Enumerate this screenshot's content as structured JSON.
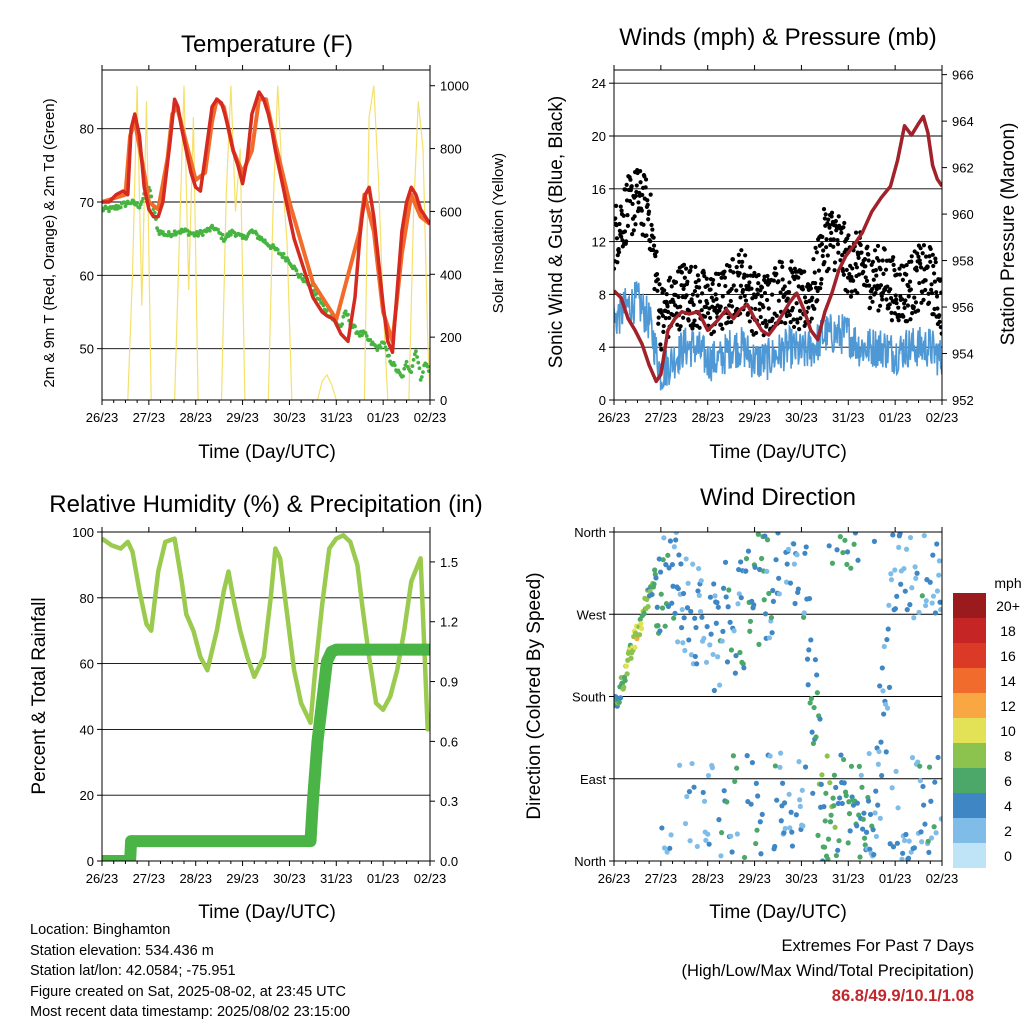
{
  "info": {
    "location": "Location: Binghamton",
    "elevation": "Station elevation: 534.436 m",
    "latlon": "Station lat/lon: 42.0584; -75.951",
    "created": "Figure created on Sat, 2025-08-02, at 23:45 UTC",
    "recent": "Most recent data timestamp: 2025/08/02 23:15:00"
  },
  "extremes": {
    "line1": "Extremes For Past 7 Days",
    "line2": "(High/Low/Max Wind/Total Precipitation)",
    "values": "86.8/49.9/10.1/1.08"
  },
  "chart_data": [
    {
      "type": "line",
      "title": "Temperature (F)",
      "xlabel": "Time (Day/UTC)",
      "ylabel": "2m & 9m T (Red, Orange) & 2m Td (Green)",
      "ylabel_right": "Solar Insolation (Yellow)",
      "x_ticks": [
        "26/23",
        "27/23",
        "28/23",
        "29/23",
        "30/23",
        "31/23",
        "01/23",
        "02/23"
      ],
      "xlim": [
        0,
        7
      ],
      "ylim": [
        43,
        88
      ],
      "y_ticks": [
        50,
        60,
        70,
        80
      ],
      "y2lim": [
        0,
        1050
      ],
      "y2_ticks": [
        0,
        200,
        400,
        600,
        800,
        1000
      ],
      "grid": "horizontal at left ticks",
      "colors": {
        "t2m": "#d42a20",
        "t9m": "#f26b2a",
        "td": "#47b441",
        "solar": "#f5e06b"
      },
      "series": [
        {
          "name": "2m T",
          "axis": "left",
          "color": "#d42a20",
          "x": [
            0,
            0.15,
            0.3,
            0.45,
            0.55,
            0.62,
            0.7,
            0.8,
            0.9,
            1.0,
            1.1,
            1.2,
            1.3,
            1.45,
            1.55,
            1.62,
            1.7,
            1.8,
            1.9,
            2.0,
            2.1,
            2.2,
            2.35,
            2.45,
            2.55,
            2.62,
            2.7,
            2.8,
            2.9,
            3.0,
            3.1,
            3.2,
            3.35,
            3.45,
            3.55,
            3.62,
            3.7,
            3.8,
            3.9,
            4.0,
            4.1,
            4.2,
            4.3,
            4.4,
            4.5,
            4.6,
            4.7,
            4.8,
            4.95,
            5.1,
            5.25,
            5.4,
            5.5,
            5.55,
            5.62,
            5.7,
            5.8,
            5.9,
            6.0,
            6.1,
            6.2,
            6.3,
            6.4,
            6.5,
            6.6,
            6.7,
            6.8,
            6.9,
            7.0
          ],
          "values": [
            70,
            70,
            71,
            71.5,
            71,
            80,
            82,
            79,
            72,
            69,
            68,
            68,
            70,
            78,
            84,
            83,
            80,
            77,
            74,
            72,
            71.5,
            76,
            83,
            84,
            83.5,
            82,
            80,
            77,
            75,
            72.5,
            76,
            82,
            85,
            84,
            82,
            80,
            77,
            74,
            71,
            68,
            65,
            63,
            61,
            59,
            57,
            56,
            55,
            54.5,
            54,
            52,
            51,
            57,
            65,
            68,
            71,
            72,
            68,
            62,
            56,
            51,
            49.5,
            58,
            66,
            70,
            72,
            71,
            69,
            68,
            67
          ]
        },
        {
          "name": "9m T",
          "axis": "left",
          "color": "#f26b2a",
          "x": [
            0,
            0.5,
            0.6,
            0.7,
            0.9,
            1.0,
            1.2,
            1.4,
            1.5,
            1.6,
            1.8,
            2.0,
            2.2,
            2.35,
            2.45,
            2.6,
            2.8,
            3.0,
            3.2,
            3.35,
            3.5,
            3.7,
            4.0,
            4.5,
            5.0,
            5.5,
            5.6,
            5.8,
            6.0,
            6.2,
            6.4,
            6.6,
            6.8,
            7.0
          ],
          "values": [
            70,
            71,
            79,
            81,
            74,
            70,
            69,
            76,
            82,
            83,
            78,
            73,
            74,
            81,
            84,
            83,
            77,
            74,
            77,
            84,
            84,
            78,
            70,
            59,
            54,
            66,
            71,
            66,
            55,
            51,
            63,
            71,
            68,
            67
          ]
        },
        {
          "name": "2m Td",
          "axis": "left",
          "color": "#47b441",
          "x": [
            0,
            0.2,
            0.4,
            0.6,
            0.8,
            1.0,
            1.1,
            1.2,
            1.4,
            1.6,
            1.8,
            2.0,
            2.2,
            2.4,
            2.6,
            2.8,
            3.0,
            3.2,
            3.4,
            3.6,
            3.8,
            4.0,
            4.2,
            4.4,
            4.6,
            4.8,
            5.0,
            5.1,
            5.2,
            5.35,
            5.5,
            5.6,
            5.7,
            5.8,
            5.9,
            6.0,
            6.1,
            6.2,
            6.3,
            6.4,
            6.5,
            6.6,
            6.7,
            6.8,
            6.9,
            7.0
          ],
          "values": [
            69,
            69,
            69.5,
            70,
            69.5,
            72,
            69,
            66,
            65.5,
            66,
            66,
            65.5,
            66,
            66.5,
            65,
            66,
            65,
            66,
            65,
            64,
            63,
            62,
            60,
            59,
            57,
            55,
            53.5,
            53,
            55,
            53,
            52,
            52,
            51,
            50.5,
            50,
            51,
            49,
            48,
            47,
            46,
            48,
            47,
            50,
            46,
            48,
            47
          ]
        },
        {
          "name": "Solar Insolation",
          "axis": "right",
          "color": "#f5e06b",
          "x": [
            0,
            0.55,
            0.65,
            0.75,
            0.85,
            0.95,
            1.05,
            1.55,
            1.65,
            1.75,
            1.85,
            1.95,
            2.05,
            2.55,
            2.65,
            2.75,
            2.85,
            2.95,
            3.05,
            3.55,
            3.65,
            3.75,
            3.85,
            3.95,
            4.05,
            4.6,
            4.7,
            4.8,
            4.9,
            5.0,
            5.6,
            5.7,
            5.8,
            5.9,
            6.0,
            6.1,
            6.55,
            6.65,
            6.75,
            6.85,
            6.95,
            7.0
          ],
          "values": [
            0,
            0,
            400,
            1000,
            300,
            950,
            0,
            0,
            500,
            1000,
            350,
            900,
            0,
            0,
            650,
            1000,
            600,
            800,
            0,
            0,
            600,
            1000,
            700,
            500,
            0,
            0,
            60,
            80,
            50,
            0,
            0,
            900,
            1000,
            700,
            300,
            0,
            0,
            600,
            950,
            800,
            200,
            0
          ]
        }
      ]
    },
    {
      "type": "scatter",
      "title": "Winds (mph) & Pressure (mb)",
      "xlabel": "Time (Day/UTC)",
      "ylabel": "Sonic Wind & Gust (Blue, Black)",
      "ylabel_right": "Station Pressure (Maroon)",
      "x_ticks": [
        "26/23",
        "27/23",
        "28/23",
        "29/23",
        "30/23",
        "31/23",
        "01/23",
        "02/23"
      ],
      "xlim": [
        0,
        7
      ],
      "ylim": [
        0,
        25
      ],
      "y_ticks": [
        0,
        4,
        8,
        12,
        16,
        20,
        24
      ],
      "y2lim": [
        952,
        966.2
      ],
      "y2_ticks": [
        952,
        954,
        956,
        958,
        960,
        962,
        964,
        966
      ],
      "colors": {
        "wind": "#4d98d5",
        "gust": "#000000",
        "pressure": "#a1222a"
      },
      "series": [
        {
          "name": "Sonic Wind",
          "axis": "left",
          "color": "#4d98d5",
          "x": [
            0,
            0.25,
            0.5,
            0.75,
            1.0,
            1.25,
            1.5,
            1.75,
            2.0,
            2.25,
            2.5,
            2.75,
            3.0,
            3.25,
            3.5,
            3.75,
            4.0,
            4.25,
            4.5,
            4.75,
            5.0,
            5.25,
            5.5,
            5.75,
            6.0,
            6.25,
            6.5,
            6.75,
            7.0
          ],
          "values": [
            6,
            7,
            7.5,
            6,
            2,
            3,
            4,
            4,
            3,
            3,
            4,
            4,
            3,
            3,
            3.5,
            4,
            3.5,
            4,
            5,
            5,
            5,
            4,
            4,
            4,
            3.5,
            4,
            4,
            4,
            3
          ]
        },
        {
          "name": "Gust",
          "axis": "left",
          "color": "#000000",
          "x": [
            0,
            0.25,
            0.5,
            0.75,
            1.0,
            1.25,
            1.5,
            1.75,
            2.0,
            2.25,
            2.5,
            2.75,
            3.0,
            3.25,
            3.5,
            3.75,
            4.0,
            4.25,
            4.5,
            4.75,
            5.0,
            5.25,
            5.5,
            5.75,
            6.0,
            6.25,
            6.5,
            6.75,
            7.0
          ],
          "values": [
            12,
            14,
            15,
            14,
            6,
            7,
            8,
            7.5,
            7,
            7,
            8,
            9,
            7,
            7,
            8,
            8,
            7,
            8,
            12,
            12,
            10,
            10,
            9,
            9,
            8,
            8,
            9,
            9,
            7
          ]
        },
        {
          "name": "Station Pressure",
          "axis": "right",
          "color": "#a1222a",
          "x": [
            0,
            0.15,
            0.3,
            0.45,
            0.6,
            0.75,
            0.9,
            1.0,
            1.15,
            1.3,
            1.45,
            1.6,
            1.8,
            2.0,
            2.2,
            2.4,
            2.55,
            2.7,
            2.85,
            3.0,
            3.15,
            3.3,
            3.45,
            3.6,
            3.75,
            3.9,
            4.05,
            4.2,
            4.35,
            4.5,
            4.65,
            4.8,
            4.95,
            5.1,
            5.3,
            5.5,
            5.7,
            5.9,
            6.05,
            6.2,
            6.35,
            6.5,
            6.6,
            6.7,
            6.8,
            6.9,
            7.0
          ],
          "values": [
            956.7,
            956.4,
            955.5,
            955,
            954.4,
            953.5,
            952.8,
            953.1,
            955,
            955.5,
            955.8,
            955.7,
            955.8,
            955,
            955.4,
            955.9,
            955.5,
            955.9,
            956.1,
            955.5,
            955,
            954.8,
            955.2,
            955.7,
            956.2,
            956.6,
            955.9,
            955,
            954.6,
            955.8,
            956.6,
            957.6,
            958.2,
            958.6,
            959.2,
            960.1,
            960.7,
            961.2,
            962.3,
            963.8,
            963.4,
            963.9,
            964.2,
            963.5,
            962.1,
            961.5,
            961.2
          ]
        }
      ]
    },
    {
      "type": "line",
      "title": "Relative Humidity (%) & Precipitation (in)",
      "xlabel": "Time (Day/UTC)",
      "ylabel": "Percent & Total Rainfall",
      "x_ticks": [
        "26/23",
        "27/23",
        "28/23",
        "29/23",
        "30/23",
        "31/23",
        "01/23",
        "02/23"
      ],
      "xlim": [
        0,
        7
      ],
      "ylim": [
        0,
        100
      ],
      "y_ticks": [
        0,
        20,
        40,
        60,
        80,
        100
      ],
      "y2lim": [
        0,
        1.65
      ],
      "y2_ticks": [
        "0.0",
        "0.3",
        "0.6",
        "0.9",
        "1.2",
        "1.5"
      ],
      "colors": {
        "rh": "#9acb4f",
        "precip": "#4bb446"
      },
      "series": [
        {
          "name": "Relative Humidity",
          "axis": "left",
          "color": "#9acb4f",
          "x": [
            0,
            0.2,
            0.4,
            0.55,
            0.65,
            0.8,
            0.95,
            1.05,
            1.2,
            1.35,
            1.55,
            1.7,
            1.8,
            1.95,
            2.1,
            2.25,
            2.45,
            2.6,
            2.7,
            2.8,
            2.95,
            3.1,
            3.25,
            3.45,
            3.6,
            3.7,
            3.8,
            3.95,
            4.1,
            4.25,
            4.45,
            4.55,
            4.7,
            4.85,
            5.0,
            5.15,
            5.3,
            5.45,
            5.55,
            5.7,
            5.85,
            6.0,
            6.15,
            6.3,
            6.45,
            6.6,
            6.8,
            6.95,
            7.0
          ],
          "values": [
            98,
            96,
            95,
            97,
            94,
            82,
            72,
            70,
            88,
            97,
            98,
            85,
            75,
            70,
            62,
            58,
            70,
            82,
            88,
            80,
            70,
            62,
            56,
            62,
            80,
            95,
            92,
            75,
            58,
            48,
            42,
            58,
            78,
            95,
            98,
            99,
            97,
            90,
            78,
            62,
            48,
            46,
            50,
            58,
            70,
            85,
            92,
            40,
            45
          ]
        },
        {
          "name": "Total Precipitation",
          "axis": "right",
          "color": "#4bb446",
          "x": [
            0,
            0.3,
            0.6,
            0.62,
            1.0,
            2.0,
            3.0,
            4.0,
            4.45,
            4.5,
            4.6,
            4.7,
            4.8,
            4.9,
            5.0,
            6.0,
            7.0
          ],
          "values": [
            0,
            0,
            0,
            0.1,
            0.1,
            0.1,
            0.1,
            0.1,
            0.1,
            0.3,
            0.6,
            0.8,
            1.0,
            1.05,
            1.06,
            1.06,
            1.06
          ]
        }
      ]
    },
    {
      "type": "scatter",
      "title": "Wind Direction",
      "xlabel": "Time (Day/UTC)",
      "ylabel": "Direction (Colored By Speed)",
      "x_ticks": [
        "26/23",
        "27/23",
        "28/23",
        "29/23",
        "30/23",
        "31/23",
        "01/23",
        "02/23"
      ],
      "xlim": [
        0,
        7
      ],
      "ylim": [
        0,
        360
      ],
      "y_tick_labels": [
        "North",
        "East",
        "South",
        "West",
        "North"
      ],
      "y_tick_values": [
        0,
        90,
        180,
        270,
        360
      ],
      "legend": {
        "title": "mph",
        "labels": [
          "20+",
          "18",
          "16",
          "14",
          "12",
          "10",
          "8",
          "6",
          "4",
          "2",
          "0"
        ],
        "colors": [
          "#9b1a1e",
          "#c52524",
          "#da3a26",
          "#f06b2c",
          "#f9a742",
          "#e3e256",
          "#8cc34e",
          "#4ba868",
          "#3f86c5",
          "#7fbde8",
          "#bfe4f8"
        ],
        "placement": "right"
      },
      "series": [
        {
          "name": "Direction",
          "x": [
            0,
            0.1,
            0.2,
            0.3,
            0.4,
            0.5,
            0.6,
            0.7,
            0.8,
            0.9,
            1.0,
            1.5,
            2.0,
            2.5,
            3.0,
            3.5,
            4.0,
            4.5,
            5.0,
            5.5,
            6.0,
            6.5,
            7.0
          ],
          "values": [
            170,
            180,
            200,
            215,
            235,
            250,
            265,
            285,
            300,
            315,
            320,
            290,
            250,
            260,
            285,
            330,
            355,
            20,
            30,
            25,
            320,
            340,
            330
          ],
          "speeds": [
            4,
            6,
            7,
            8,
            9,
            10,
            8,
            7,
            6,
            6,
            4,
            3,
            3,
            4,
            5,
            3,
            3,
            6,
            5,
            4,
            3,
            3,
            4
          ]
        }
      ]
    }
  ]
}
